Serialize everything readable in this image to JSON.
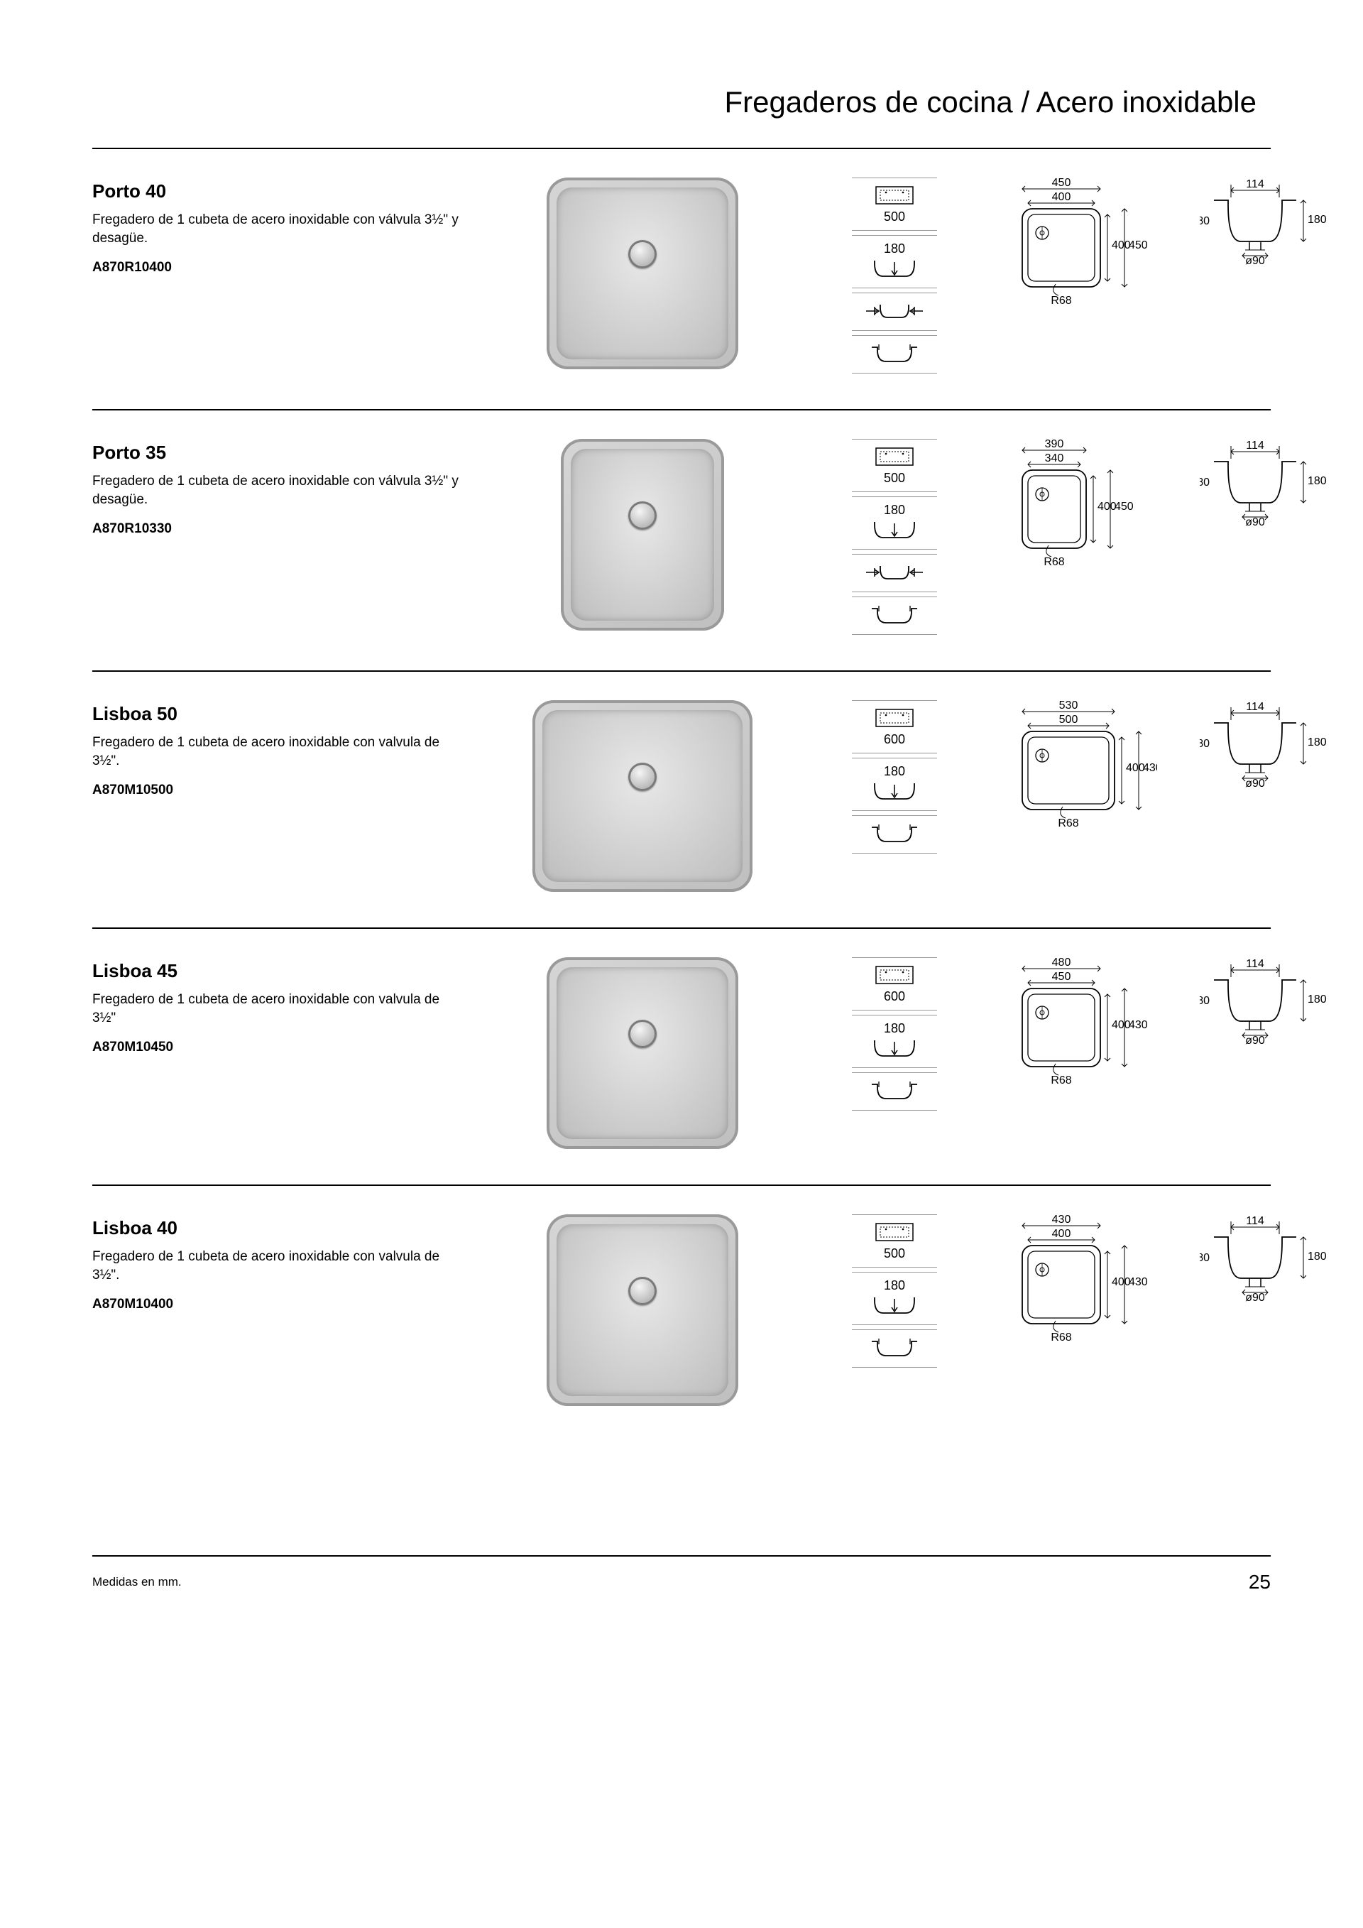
{
  "header_title": "Fregaderos de cocina / Acero inoxidable",
  "footer_note": "Medidas en mm.",
  "page_number": "25",
  "products": [
    {
      "title": "Porto 40",
      "description": "Fregadero de 1 cubeta de acero inoxidable con válvula 3½\" y desagüe.",
      "code": "A870R10400",
      "cabinet_width": "500",
      "depth": "180",
      "topdown": {
        "outer_w": "450",
        "inner_w": "400",
        "h1": "400",
        "h2": "450",
        "radius": "R68"
      },
      "section": {
        "w": "114",
        "h": "180",
        "drain": "ø90"
      },
      "profiles": 4
    },
    {
      "title": "Porto 35",
      "description": "Fregadero de 1 cubeta de acero inoxidable con válvula 3½\" y desagüe.",
      "code": "A870R10330",
      "cabinet_width": "500",
      "depth": "180",
      "topdown": {
        "outer_w": "390",
        "inner_w": "340",
        "h1": "400",
        "h2": "450",
        "radius": "R68"
      },
      "section": {
        "w": "114",
        "h": "180",
        "drain": "ø90"
      },
      "profiles": 4,
      "narrow": true
    },
    {
      "title": "Lisboa 50",
      "description": "Fregadero de 1 cubeta de acero inoxidable con valvula de 3½\".",
      "code": "A870M10500",
      "cabinet_width": "600",
      "depth": "180",
      "topdown": {
        "outer_w": "530",
        "inner_w": "500",
        "h1": "400",
        "h2": "430",
        "radius": "R68"
      },
      "section": {
        "w": "114",
        "h": "180",
        "drain": "ø90"
      },
      "profiles": 3,
      "wide": true
    },
    {
      "title": "Lisboa 45",
      "description": "Fregadero de 1 cubeta de acero inoxidable con valvula de 3½\"",
      "code": "A870M10450",
      "cabinet_width": "600",
      "depth": "180",
      "topdown": {
        "outer_w": "480",
        "inner_w": "450",
        "h1": "400",
        "h2": "430",
        "radius": "R68"
      },
      "section": {
        "w": "114",
        "h": "180",
        "drain": "ø90"
      },
      "profiles": 3
    },
    {
      "title": "Lisboa 40",
      "description": "Fregadero de 1 cubeta de acero inoxidable con valvula de 3½\".",
      "code": "A870M10400",
      "cabinet_width": "500",
      "depth": "180",
      "topdown": {
        "outer_w": "430",
        "inner_w": "400",
        "h1": "400",
        "h2": "430",
        "radius": "R68"
      },
      "section": {
        "w": "114",
        "h": "180",
        "drain": "ø90"
      },
      "profiles": 3
    }
  ],
  "colors": {
    "text": "#000000",
    "rule": "#000000",
    "icon_rule": "#999999",
    "sink_fill": "#c8c8c8",
    "line": "#000000"
  }
}
